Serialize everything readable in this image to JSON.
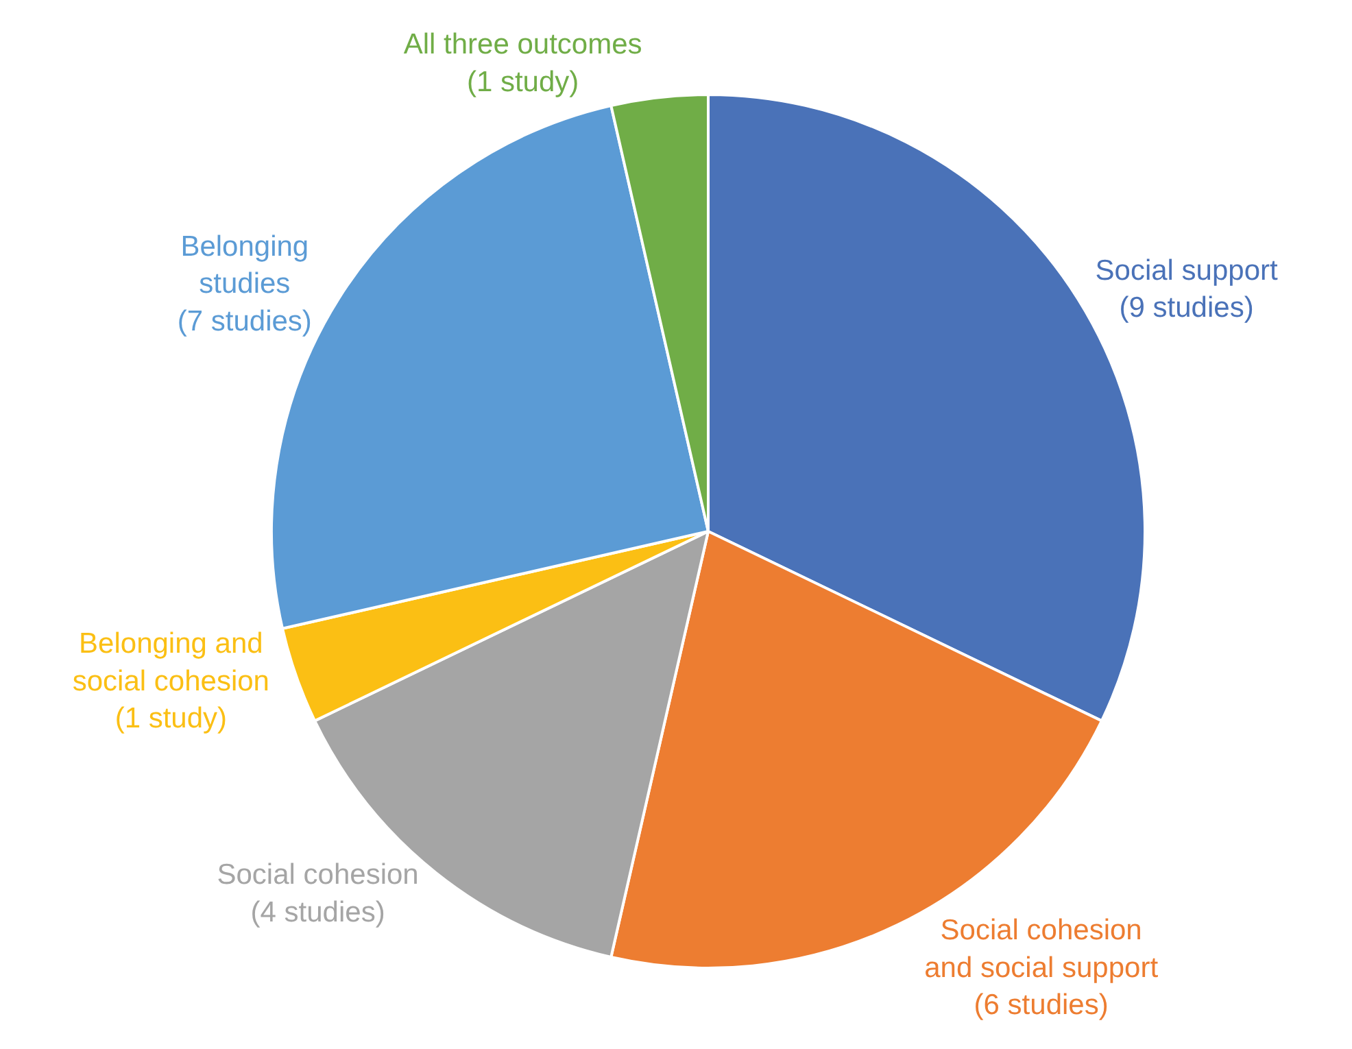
{
  "chart_data": {
    "type": "pie",
    "categories": [
      "Social support",
      "Social cohesion\nand social support",
      "Social cohesion",
      "Belonging and\nsocial cohesion",
      "Belonging\nstudies",
      "All three outcomes"
    ],
    "values": [
      9,
      6,
      4,
      1,
      7,
      1
    ],
    "value_labels": [
      "(9 studies)",
      "(6 studies)",
      "(4 studies)",
      "(1 study)",
      "(7 studies)",
      "(1 study)"
    ],
    "colors": [
      "#4a72b8",
      "#ed7d31",
      "#a5a5a5",
      "#fbbf14",
      "#5b9bd5",
      "#70ad47"
    ],
    "legend": false
  }
}
